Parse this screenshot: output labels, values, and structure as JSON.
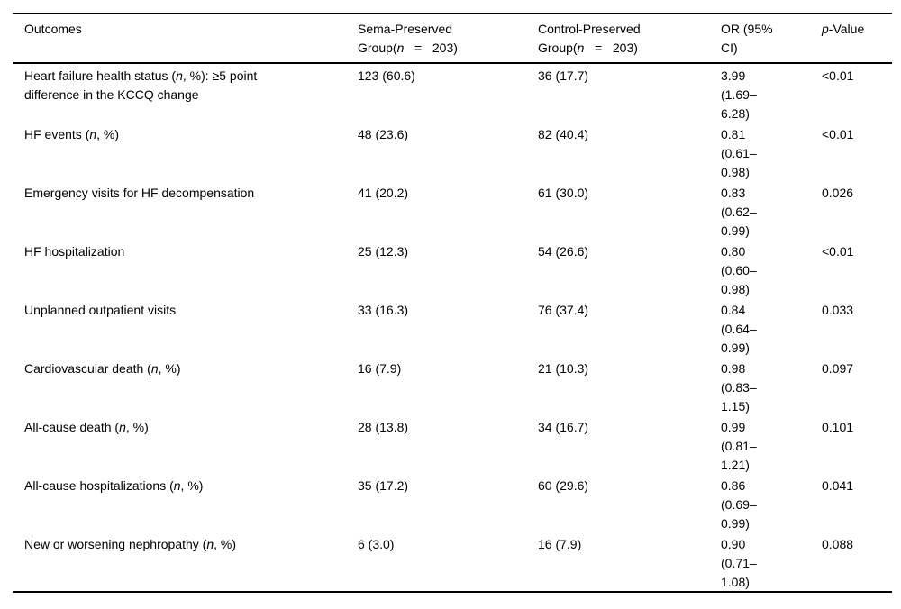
{
  "colors": {
    "background": "#ffffff",
    "text": "#000000",
    "rule": "#000000"
  },
  "table": {
    "columns": [
      {
        "label": "Outcomes"
      },
      {
        "label": "Sema-Preserved\nGroup(*n*   =   203)"
      },
      {
        "label": "Control-Preserved\nGroup(*n*   =   203)"
      },
      {
        "label": "OR (95%\nCI)"
      },
      {
        "label": "*p*-Value"
      }
    ],
    "rows": [
      {
        "outcome": "Heart failure health status (*n*, %): ≥5 point\ndifference in the KCCQ change",
        "sema": "123 (60.6)",
        "control": "36 (17.7)",
        "or": "3.99\n(1.69–\n6.28)",
        "p": "<0.01"
      },
      {
        "outcome": "HF events (*n*, %)",
        "sema": "48 (23.6)",
        "control": "82 (40.4)",
        "or": "0.81\n(0.61–\n0.98)",
        "p": "<0.01"
      },
      {
        "outcome": "Emergency visits for HF decompensation",
        "sema": "41 (20.2)",
        "control": "61 (30.0)",
        "or": "0.83\n(0.62–\n0.99)",
        "p": "0.026"
      },
      {
        "outcome": "HF hospitalization",
        "sema": "25 (12.3)",
        "control": "54 (26.6)",
        "or": "0.80\n(0.60–\n0.98)",
        "p": "<0.01"
      },
      {
        "outcome": "Unplanned outpatient visits",
        "sema": "33 (16.3)",
        "control": "76 (37.4)",
        "or": "0.84\n(0.64–\n0.99)",
        "p": "0.033"
      },
      {
        "outcome": "Cardiovascular death (*n*, %)",
        "sema": "16 (7.9)",
        "control": "21 (10.3)",
        "or": "0.98\n(0.83–\n1.15)",
        "p": "0.097"
      },
      {
        "outcome": "All-cause death (*n*, %)",
        "sema": "28 (13.8)",
        "control": "34 (16.7)",
        "or": "0.99\n(0.81–\n1.21)",
        "p": "0.101"
      },
      {
        "outcome": "All-cause hospitalizations (*n*, %)",
        "sema": "35 (17.2)",
        "control": "60 (29.6)",
        "or": "0.86\n(0.69–\n0.99)",
        "p": "0.041"
      },
      {
        "outcome": "New or worsening nephropathy (*n*, %)",
        "sema": "6 (3.0)",
        "control": "16 (7.9)",
        "or": "0.90\n(0.71–\n1.08)",
        "p": "0.088"
      }
    ]
  }
}
